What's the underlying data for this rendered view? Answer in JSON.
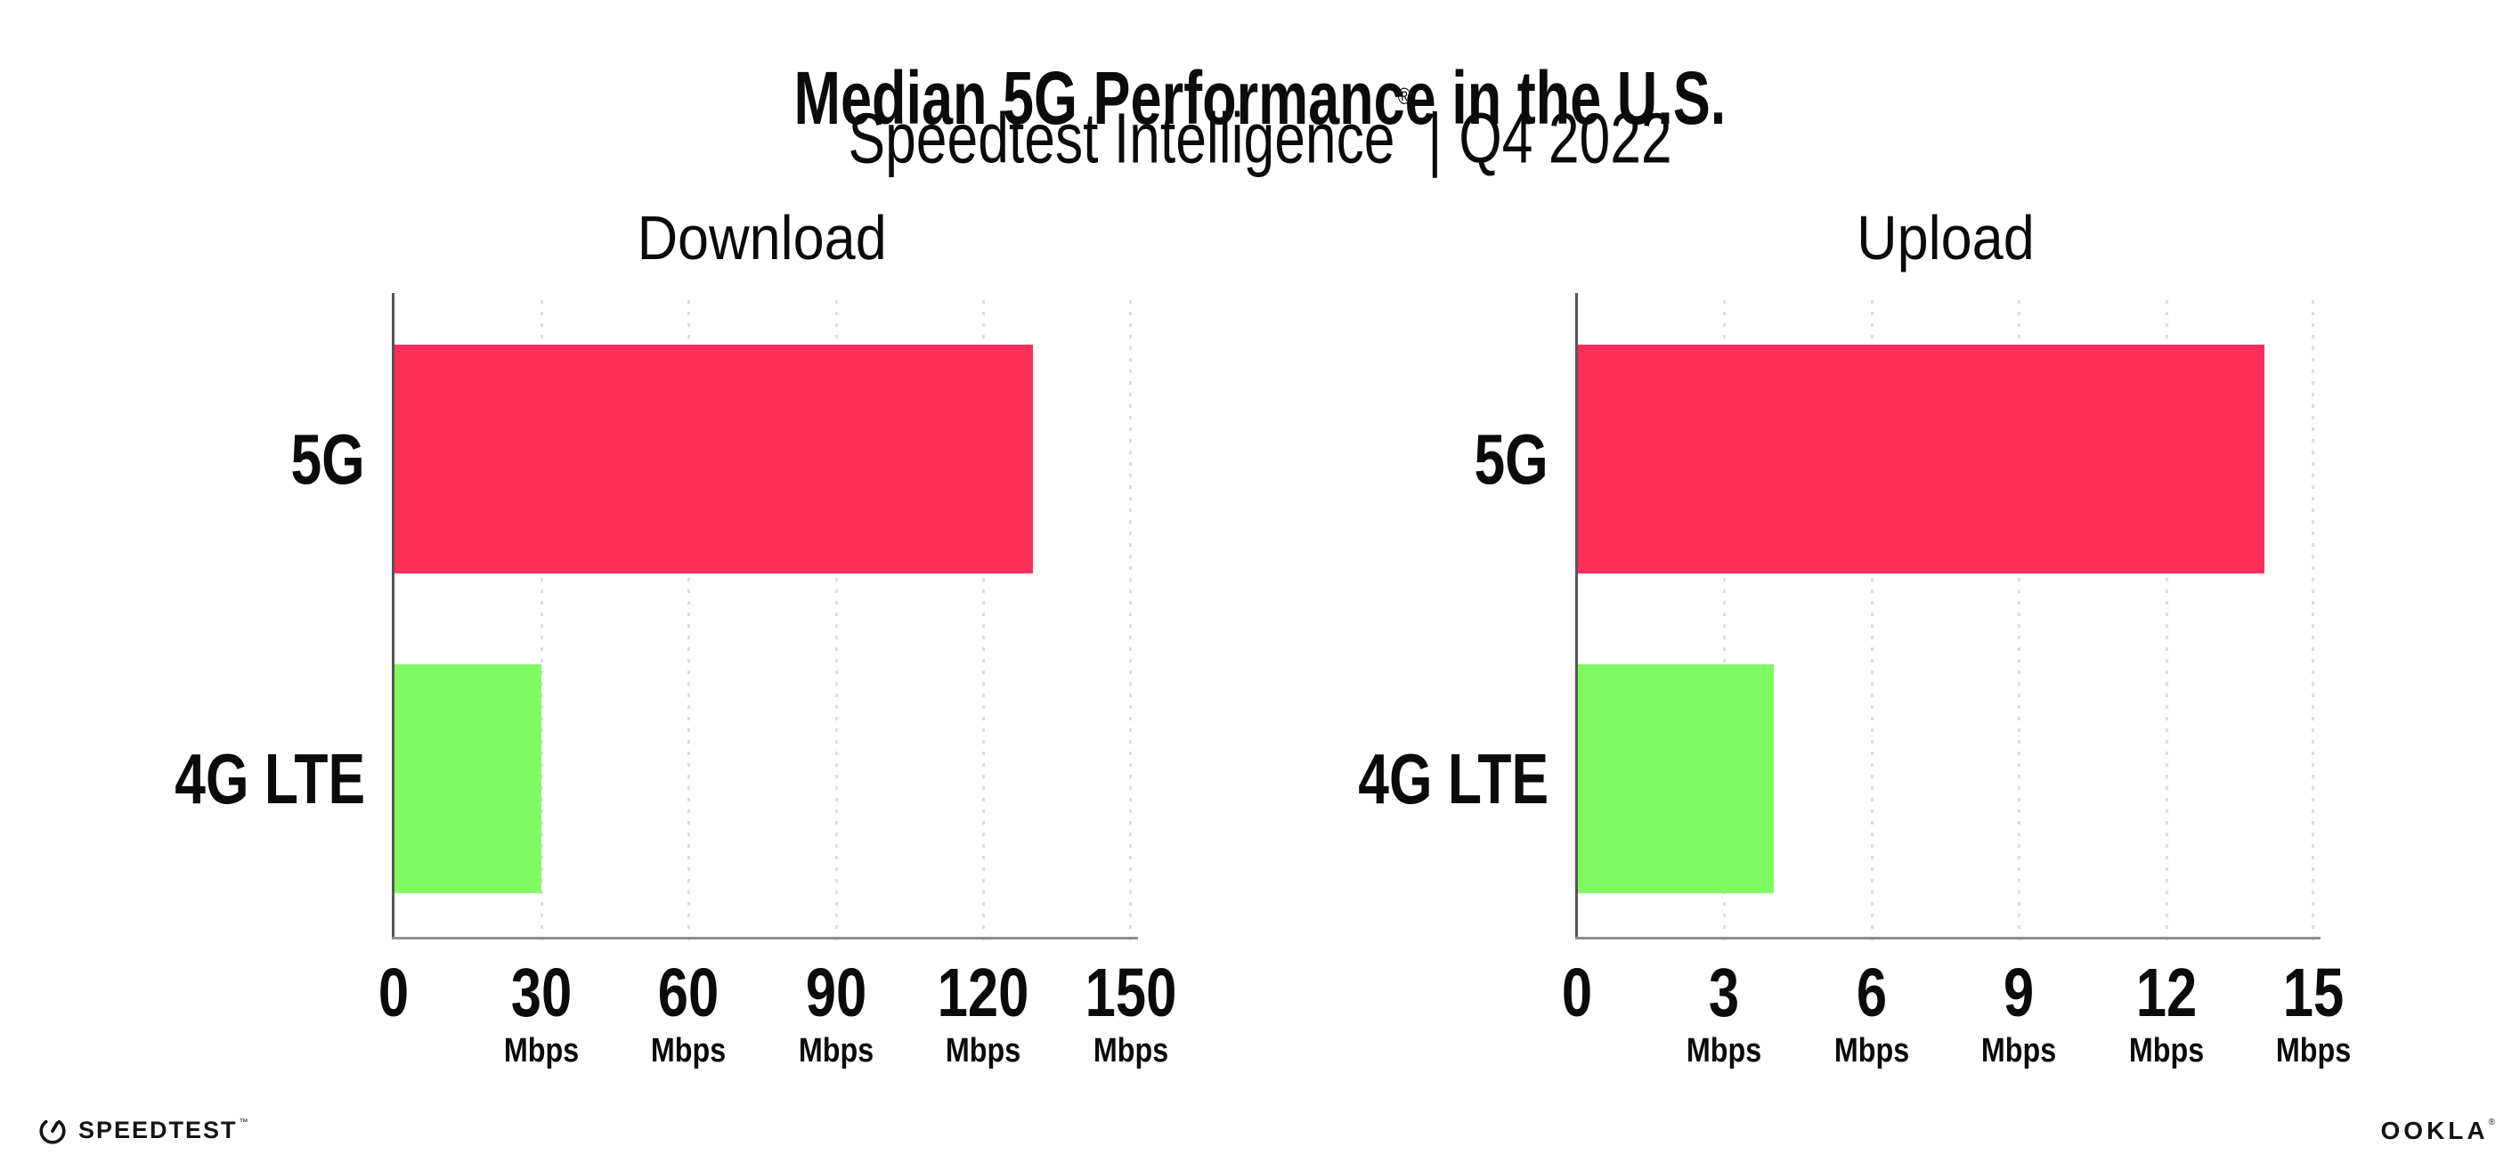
{
  "header": {
    "title": "Median 5G Performance in the U.S.",
    "subtitle_name": "Speedtest Intelligence",
    "subtitle_reg": "®",
    "subtitle_separator": "|",
    "subtitle_period": "Q4 2022"
  },
  "colors": {
    "bar_5g": "#ff2f58",
    "bar_4g_lte": "#80fb63",
    "gridline": "#dcdce8",
    "x_axis": "#8e8e93",
    "y_axis": "#55555a",
    "text": "#0b0b0c"
  },
  "chart_data": [
    {
      "type": "bar",
      "orientation": "horizontal",
      "title": "Download",
      "categories": [
        "5G",
        "4G LTE"
      ],
      "values": [
        130,
        30
      ],
      "unit": "Mbps",
      "xlabel": "",
      "ylabel": "",
      "xlim": [
        0,
        150
      ],
      "ticks": [
        0,
        30,
        60,
        90,
        120,
        150
      ],
      "tick_labels": [
        "0",
        "30",
        "60",
        "90",
        "120",
        "150"
      ],
      "series_colors": [
        "#ff2f58",
        "#80fb63"
      ],
      "grid": "dotted-vertical",
      "legend": "none"
    },
    {
      "type": "bar",
      "orientation": "horizontal",
      "title": "Upload",
      "categories": [
        "5G",
        "4G LTE"
      ],
      "values": [
        14,
        4
      ],
      "unit": "Mbps",
      "xlabel": "",
      "ylabel": "",
      "xlim": [
        0,
        15
      ],
      "ticks": [
        0,
        3,
        6,
        9,
        12,
        15
      ],
      "tick_labels": [
        "0",
        "3",
        "6",
        "9",
        "12",
        "15"
      ],
      "series_colors": [
        "#ff2f58",
        "#80fb63"
      ],
      "grid": "dotted-vertical",
      "legend": "none"
    }
  ],
  "footer": {
    "speedtest_wordmark": "SPEEDTEST",
    "speedtest_tm": "™",
    "ookla_wordmark": "OOKLA",
    "ookla_reg": "®"
  }
}
